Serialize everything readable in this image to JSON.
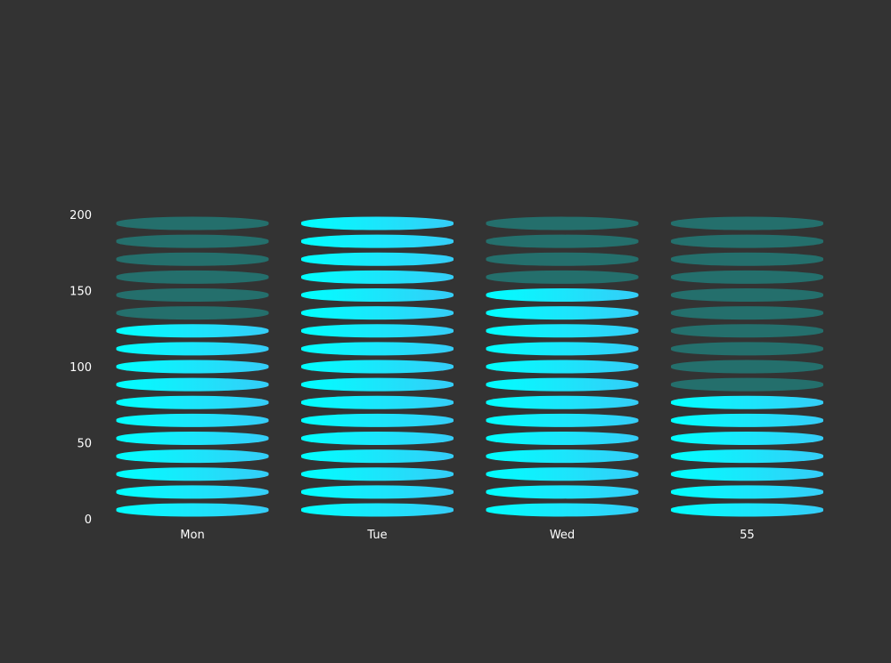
{
  "chart_data": {
    "type": "bar",
    "style": "pictorial-stacked-discs",
    "categories": [
      "Mon",
      "Tue",
      "Wed",
      "55"
    ],
    "values": [
      124,
      200,
      150,
      80
    ],
    "capacity": 200,
    "ylim": [
      0,
      200
    ],
    "yticks": [
      0,
      50,
      100,
      150,
      200
    ],
    "segments_per_bar": 17,
    "grid": false,
    "legend": "none",
    "colors": {
      "background": "#333333",
      "fill_start": "#00ffff",
      "fill_end": "#35cdf8",
      "empty": "#246f6c",
      "text": "#ffffff"
    }
  }
}
